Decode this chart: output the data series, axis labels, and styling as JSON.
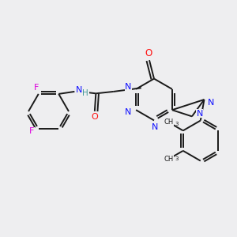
{
  "bg_color": "#eeeef0",
  "bond_color": "#1a1a1a",
  "N_color": "#1010ff",
  "O_color": "#ff1010",
  "F_color": "#dd00dd",
  "H_color": "#449999",
  "line_width": 1.4,
  "figsize": [
    3.0,
    3.0
  ],
  "dpi": 100,
  "xlim": [
    0,
    10
  ],
  "ylim": [
    0,
    10
  ]
}
